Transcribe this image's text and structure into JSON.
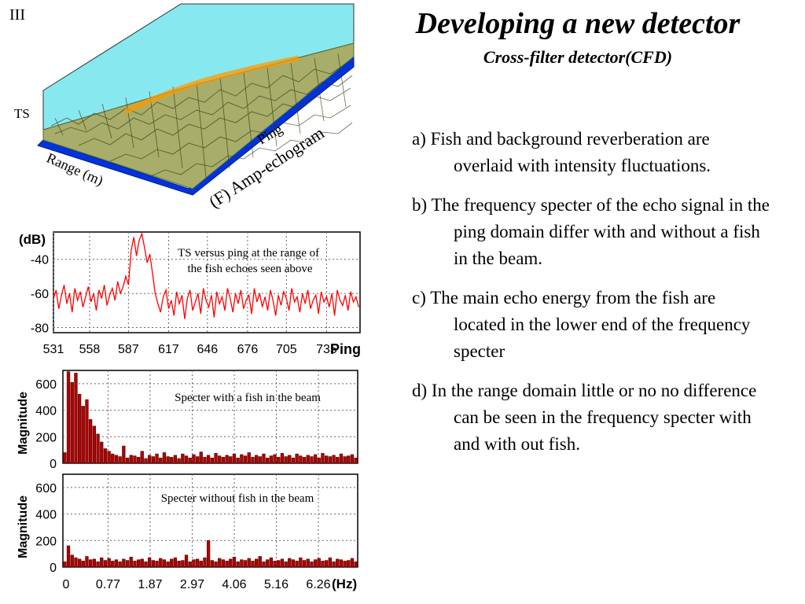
{
  "slide": {
    "number": "III",
    "title": "Developing a new detector",
    "subtitle": "Cross-filter detector(CFD)"
  },
  "echogram": {
    "caption": "(F) Amp-echogram",
    "axis_ts": "TS",
    "axis_range": "Range (m)",
    "axis_ping": "Ping"
  },
  "bullets": [
    "a) Fish and background reverberation are overlaid with intensity fluctuations.",
    "b) The frequency specter of the echo signal in the ping domain differ with and without a fish in the beam.",
    "c) The main echo energy from the fish are located in the lower end of the frequency specter",
    "d) In the range domain little or no no difference can be seen in the frequency specter with and with out fish."
  ],
  "colors": {
    "line": "#ff0000",
    "bar_fill": "#b00000",
    "bar_edge": "#550000",
    "grid": "#666666",
    "echogram_floor": "#0033dd",
    "echogram_wall": "#88e8f0",
    "echogram_surface": "#a8ad6a",
    "echogram_peak": "#ff9900"
  },
  "chart_data": [
    {
      "type": "line",
      "annotation": "TS versus ping at the range of the fish echoes seen above",
      "ylabel": "(dB)",
      "xlabel": "Ping",
      "x_ticks": [
        "531",
        "558",
        "587",
        "617",
        "646",
        "676",
        "705",
        "735"
      ],
      "y_ticks": [
        -40,
        -60,
        -80
      ],
      "xlim": [
        531,
        760
      ],
      "ylim": [
        -83,
        -24
      ],
      "grid": true,
      "series": [
        {
          "x": [
            531,
            533,
            535,
            537,
            539,
            541,
            543,
            545,
            547,
            549,
            551,
            553,
            555,
            557,
            559,
            561,
            563,
            565,
            567,
            569,
            571,
            573,
            575,
            577,
            579,
            581,
            583,
            585,
            587,
            589,
            591,
            593,
            595,
            597,
            599,
            601,
            603,
            605,
            607,
            609,
            611,
            613,
            615,
            617,
            619,
            621,
            623,
            625,
            627,
            629,
            631,
            633,
            635,
            637,
            639,
            641,
            643,
            645,
            647,
            649,
            651,
            653,
            655,
            657,
            659,
            661,
            663,
            665,
            667,
            669,
            671,
            673,
            675,
            677,
            679,
            681,
            683,
            685,
            687,
            689,
            691,
            693,
            695,
            697,
            699,
            701,
            703,
            705,
            707,
            709,
            711,
            713,
            715,
            717,
            719,
            721,
            723,
            725,
            727,
            729,
            731,
            733,
            735,
            737,
            739,
            741,
            743,
            745,
            747,
            749,
            751,
            753,
            755,
            757,
            759
          ],
          "y": [
            -63,
            -58,
            -69,
            -61,
            -55,
            -66,
            -60,
            -71,
            -57,
            -64,
            -59,
            -68,
            -62,
            -56,
            -65,
            -60,
            -70,
            -58,
            -63,
            -55,
            -67,
            -61,
            -57,
            -64,
            -53,
            -60,
            -56,
            -50,
            -55,
            -35,
            -27,
            -38,
            -29,
            -25,
            -33,
            -42,
            -37,
            -48,
            -60,
            -66,
            -71,
            -62,
            -58,
            -69,
            -64,
            -73,
            -59,
            -66,
            -61,
            -75,
            -63,
            -58,
            -70,
            -65,
            -60,
            -72,
            -57,
            -64,
            -68,
            -61,
            -74,
            -59,
            -66,
            -62,
            -70,
            -57,
            -63,
            -71,
            -60,
            -66,
            -58,
            -69,
            -64,
            -61,
            -72,
            -57,
            -65,
            -60,
            -68,
            -62,
            -70,
            -58,
            -64,
            -73,
            -61,
            -67,
            -59,
            -63,
            -70,
            -57,
            -65,
            -62,
            -71,
            -60,
            -66,
            -58,
            -69,
            -64,
            -61,
            -72,
            -59,
            -65,
            -62,
            -68,
            -60,
            -73,
            -58,
            -64,
            -67,
            -61,
            -70,
            -59,
            -65,
            -62,
            -68
          ]
        }
      ]
    },
    {
      "type": "bar",
      "annotation": "Specter with a fish in the beam",
      "ylabel": "Magnitude",
      "y_ticks": [
        0,
        200,
        400,
        600
      ],
      "ylim": [
        0,
        700
      ],
      "grid": true,
      "values": [
        80,
        690,
        610,
        680,
        520,
        430,
        480,
        330,
        280,
        220,
        160,
        110,
        90,
        70,
        60,
        50,
        130,
        40,
        60,
        55,
        45,
        90,
        35,
        60,
        50,
        70,
        40,
        80,
        50,
        45,
        60,
        35,
        70,
        55,
        40,
        65,
        50,
        85,
        45,
        60,
        40,
        75,
        55,
        45,
        60,
        50,
        70,
        40,
        65,
        55,
        80,
        45,
        60,
        50,
        70,
        40,
        55,
        65,
        45,
        75,
        50,
        60,
        40,
        70,
        55,
        45,
        60,
        50,
        65,
        40,
        75,
        55,
        50,
        60,
        45,
        70,
        50,
        55,
        65,
        40
      ]
    },
    {
      "type": "bar",
      "annotation": "Specter without fish in the beam",
      "ylabel": "Magnitude",
      "xlabel": "(Hz)",
      "x_ticks": [
        "0",
        "0.77",
        "1.87",
        "2.97",
        "4.06",
        "5.16",
        "6.26"
      ],
      "y_ticks": [
        0,
        200,
        400,
        600
      ],
      "ylim": [
        0,
        700
      ],
      "grid": true,
      "values": [
        40,
        160,
        90,
        70,
        60,
        45,
        80,
        55,
        60,
        40,
        70,
        50,
        65,
        45,
        55,
        40,
        60,
        50,
        75,
        45,
        55,
        60,
        40,
        70,
        50,
        45,
        65,
        55,
        40,
        60,
        70,
        45,
        50,
        90,
        40,
        55,
        60,
        45,
        70,
        200,
        50,
        40,
        65,
        55,
        45,
        60,
        75,
        40,
        55,
        50,
        65,
        45,
        60,
        80,
        40,
        55,
        70,
        45,
        50,
        60,
        40,
        65,
        55,
        45,
        70,
        50,
        60,
        40,
        55,
        65,
        45,
        50,
        70,
        40,
        60,
        55,
        45,
        50,
        65,
        40
      ]
    }
  ]
}
